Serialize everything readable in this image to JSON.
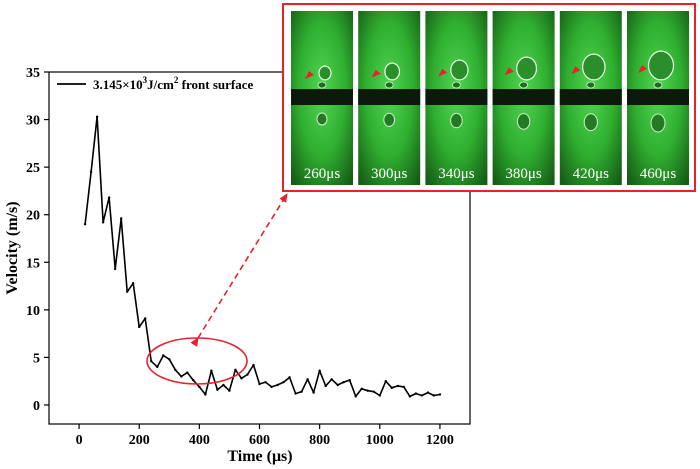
{
  "chart_data": {
    "type": "line",
    "title": "",
    "xlabel": "Time (μs)",
    "ylabel": "Velocity (m/s)",
    "xlim": [
      -100,
      1300
    ],
    "ylim": [
      -2,
      35
    ],
    "xticks": [
      0,
      200,
      400,
      600,
      800,
      1000,
      1200
    ],
    "yticks": [
      0,
      5,
      10,
      15,
      20,
      25,
      30,
      35
    ],
    "x_tick_labels": [
      "0",
      "200",
      "400",
      "600",
      "800",
      "1000",
      "1200"
    ],
    "y_tick_labels": [
      "0",
      "5",
      "10",
      "15",
      "20",
      "25",
      "30",
      "35"
    ],
    "legend": {
      "position": "top-left",
      "entries": [
        {
          "base": "3.145×10",
          "sup1": "3",
          "mid": "J/cm",
          "sup2": "2",
          "rest": " front surface"
        }
      ]
    },
    "series": [
      {
        "name": "3.145×10^3J/cm^2 front surface",
        "color": "#000000",
        "x": [
          20,
          40,
          60,
          80,
          100,
          120,
          140,
          160,
          180,
          200,
          220,
          240,
          260,
          280,
          300,
          320,
          340,
          360,
          380,
          400,
          420,
          440,
          460,
          480,
          500,
          520,
          540,
          560,
          580,
          600,
          620,
          640,
          660,
          680,
          700,
          720,
          740,
          760,
          780,
          800,
          820,
          840,
          860,
          880,
          900,
          920,
          940,
          960,
          980,
          1000,
          1020,
          1040,
          1060,
          1080,
          1100,
          1120,
          1140,
          1160,
          1180,
          1200
        ],
        "y": [
          19.0,
          24.5,
          30.3,
          19.2,
          21.8,
          14.3,
          19.6,
          11.9,
          12.8,
          8.2,
          9.1,
          4.6,
          4.0,
          5.2,
          4.8,
          3.7,
          3.0,
          3.4,
          2.6,
          1.9,
          1.1,
          3.6,
          1.6,
          2.1,
          1.5,
          3.7,
          2.8,
          3.2,
          4.2,
          2.2,
          2.4,
          1.9,
          2.1,
          2.4,
          2.9,
          1.2,
          1.4,
          2.7,
          1.3,
          3.6,
          2.0,
          2.7,
          2.1,
          2.4,
          2.6,
          0.9,
          1.7,
          1.5,
          1.4,
          1.0,
          2.5,
          1.8,
          2.0,
          1.9,
          0.9,
          1.2,
          1.0,
          1.3,
          1.0,
          1.1
        ]
      }
    ],
    "highlight": {
      "shape": "ellipse",
      "color": "#e8212b",
      "x_range": [
        230,
        510
      ]
    },
    "inset": {
      "border_color": "#e8212b",
      "frame_color": "#3cc43c",
      "frames": [
        "260μs",
        "300μs",
        "340μs",
        "380μs",
        "420μs",
        "460μs"
      ]
    }
  }
}
